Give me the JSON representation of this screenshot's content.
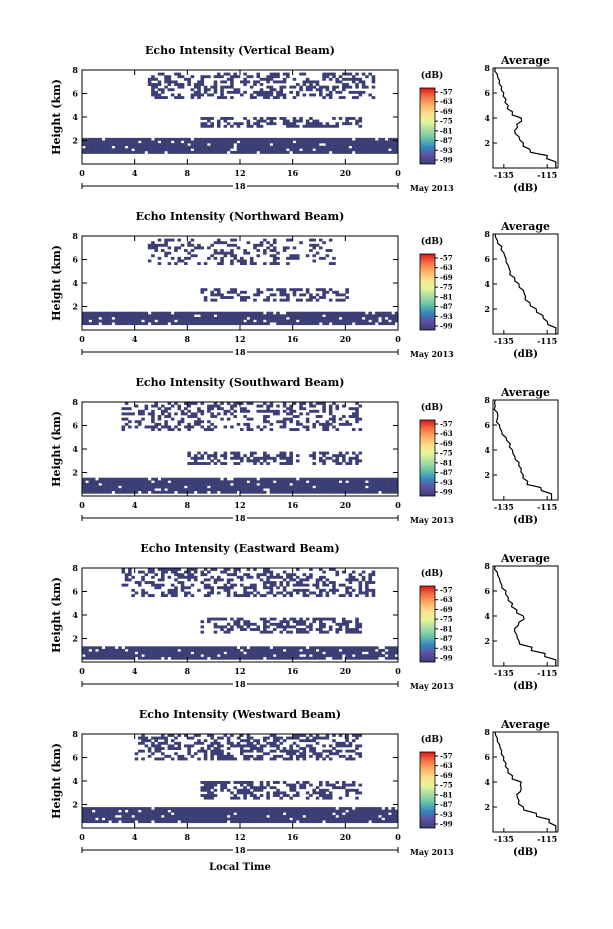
{
  "chart_data": [
    {
      "type": "heatmap",
      "title": "Echo Intensity (Vertical Beam)",
      "ylabel": "Height (km)",
      "x_ticks": [
        "0",
        "4",
        "8",
        "12",
        "16",
        "20",
        "0"
      ],
      "y_ticks": [
        "2",
        "4",
        "6",
        "8"
      ],
      "date_center": "18",
      "date_label": "May 2013",
      "colorbar": {
        "unit": "(dB)",
        "ticks": [
          "-57",
          "-63",
          "-69",
          "-75",
          "-81",
          "-87",
          "-93",
          "-99"
        ]
      },
      "layers": [
        {
          "name": "lower",
          "y_range": [
            0.9,
            2.2
          ],
          "density": 0.92
        },
        {
          "name": "middle",
          "x_range": [
            9,
            21
          ],
          "y_range": [
            3.2,
            4.0
          ],
          "density": 0.55
        },
        {
          "name": "upper",
          "x_range": [
            5,
            22
          ],
          "y_range": [
            5.5,
            7.8
          ],
          "density": 0.45
        }
      ],
      "average_profile": {
        "title": "Average",
        "xlabel": "(dB)",
        "x_ticks": [
          "-135",
          "-115"
        ],
        "y_ticks": [
          "2",
          "4",
          "6",
          "8"
        ],
        "xlim": [
          -140,
          -110
        ],
        "ylim": [
          0,
          8
        ],
        "heights": [
          0.5,
          1.0,
          1.5,
          2.0,
          2.5,
          3.0,
          3.5,
          4.0,
          4.5,
          5.0,
          5.5,
          6.0,
          6.5,
          7.0,
          7.5,
          8.0
        ],
        "values": [
          -111,
          -115,
          -123,
          -126,
          -128,
          -130,
          -129,
          -127,
          -131,
          -133,
          -134,
          -135,
          -136,
          -137,
          -138,
          -139
        ]
      }
    },
    {
      "type": "heatmap",
      "title": "Echo Intensity (Northward Beam)",
      "ylabel": "Height (km)",
      "x_ticks": [
        "0",
        "4",
        "8",
        "12",
        "16",
        "20",
        "0"
      ],
      "y_ticks": [
        "2",
        "4",
        "6",
        "8"
      ],
      "date_center": "18",
      "date_label": "May 2013",
      "colorbar": {
        "unit": "(dB)",
        "ticks": [
          "-57",
          "-63",
          "-69",
          "-75",
          "-81",
          "-87",
          "-93",
          "-99"
        ]
      },
      "layers": [
        {
          "name": "lower",
          "y_range": [
            0.4,
            1.6
          ],
          "density": 0.92
        },
        {
          "name": "middle",
          "x_range": [
            9,
            20
          ],
          "y_range": [
            2.4,
            3.6
          ],
          "density": 0.5
        },
        {
          "name": "upper",
          "x_range": [
            5,
            19
          ],
          "y_range": [
            5.5,
            7.8
          ],
          "density": 0.3
        }
      ],
      "average_profile": {
        "title": "Average",
        "xlabel": "(dB)",
        "x_ticks": [
          "-135",
          "-115"
        ],
        "y_ticks": [
          "2",
          "4",
          "6",
          "8"
        ],
        "xlim": [
          -140,
          -110
        ],
        "ylim": [
          0,
          8
        ],
        "heights": [
          0.5,
          1.0,
          1.5,
          2.0,
          2.5,
          3.0,
          3.5,
          4.0,
          4.5,
          5.0,
          5.5,
          6.0,
          6.5,
          7.0,
          7.5,
          8.0
        ],
        "values": [
          -111,
          -115,
          -117,
          -120,
          -123,
          -125,
          -126,
          -128,
          -130,
          -132,
          -133,
          -134,
          -135,
          -136,
          -138,
          -139
        ]
      }
    },
    {
      "type": "heatmap",
      "title": "Echo Intensity (Southward Beam)",
      "ylabel": "Height (km)",
      "x_ticks": [
        "0",
        "4",
        "8",
        "12",
        "16",
        "20",
        "0"
      ],
      "y_ticks": [
        "2",
        "4",
        "6",
        "8"
      ],
      "date_center": "18",
      "date_label": "May 2013",
      "colorbar": {
        "unit": "(dB)",
        "ticks": [
          "-57",
          "-63",
          "-69",
          "-75",
          "-81",
          "-87",
          "-93",
          "-99"
        ]
      },
      "layers": [
        {
          "name": "lower",
          "y_range": [
            0.3,
            1.6
          ],
          "density": 0.92
        },
        {
          "name": "middle",
          "x_range": [
            8,
            21
          ],
          "y_range": [
            2.6,
            3.8
          ],
          "density": 0.5
        },
        {
          "name": "upper",
          "x_range": [
            3,
            21
          ],
          "y_range": [
            5.6,
            7.9
          ],
          "density": 0.35
        }
      ],
      "average_profile": {
        "title": "Average",
        "xlabel": "(dB)",
        "x_ticks": [
          "-135",
          "-115"
        ],
        "y_ticks": [
          "2",
          "4",
          "6",
          "8"
        ],
        "xlim": [
          -140,
          -110
        ],
        "ylim": [
          0,
          8
        ],
        "heights": [
          0.5,
          1.0,
          1.5,
          2.0,
          2.5,
          3.0,
          3.5,
          4.0,
          4.5,
          5.0,
          5.5,
          6.0,
          6.5,
          7.0,
          7.5,
          8.0
        ],
        "values": [
          -113,
          -118,
          -124,
          -126,
          -127,
          -128,
          -130,
          -131,
          -132,
          -134,
          -136,
          -137,
          -138,
          -138,
          -139,
          -139
        ]
      }
    },
    {
      "type": "heatmap",
      "title": "Echo Intensity (Eastward Beam)",
      "ylabel": "Height (km)",
      "x_ticks": [
        "0",
        "4",
        "8",
        "12",
        "16",
        "20",
        "0"
      ],
      "y_ticks": [
        "2",
        "4",
        "6",
        "8"
      ],
      "date_center": "18",
      "date_label": "May 2013",
      "colorbar": {
        "unit": "(dB)",
        "ticks": [
          "-57",
          "-63",
          "-69",
          "-75",
          "-81",
          "-87",
          "-93",
          "-99"
        ]
      },
      "layers": [
        {
          "name": "lower",
          "y_range": [
            0.3,
            1.4
          ],
          "density": 0.92
        },
        {
          "name": "middle",
          "x_range": [
            9,
            21
          ],
          "y_range": [
            2.5,
            3.8
          ],
          "density": 0.5
        },
        {
          "name": "upper",
          "x_range": [
            3,
            22
          ],
          "y_range": [
            5.6,
            7.9
          ],
          "density": 0.4
        }
      ],
      "average_profile": {
        "title": "Average",
        "xlabel": "(dB)",
        "x_ticks": [
          "-135",
          "-115"
        ],
        "y_ticks": [
          "2",
          "4",
          "6",
          "8"
        ],
        "xlim": [
          -140,
          -110
        ],
        "ylim": [
          0,
          8
        ],
        "heights": [
          0.5,
          1.0,
          1.5,
          2.0,
          2.5,
          3.0,
          3.5,
          4.0,
          4.5,
          5.0,
          5.5,
          6.0,
          6.5,
          7.0,
          7.5,
          8.0
        ],
        "values": [
          -111,
          -116,
          -122,
          -128,
          -129,
          -130,
          -128,
          -126,
          -129,
          -131,
          -133,
          -134,
          -136,
          -137,
          -138,
          -139
        ]
      }
    },
    {
      "type": "heatmap",
      "title": "Echo Intensity (Westward Beam)",
      "ylabel": "Height (km)",
      "x_ticks": [
        "0",
        "4",
        "8",
        "12",
        "16",
        "20",
        "0"
      ],
      "y_ticks": [
        "2",
        "4",
        "6",
        "8"
      ],
      "date_center": "18",
      "date_label": "May 2013",
      "xlabel": "Local Time",
      "colorbar": {
        "unit": "(dB)",
        "ticks": [
          "-57",
          "-63",
          "-69",
          "-75",
          "-81",
          "-87",
          "-93",
          "-99"
        ]
      },
      "layers": [
        {
          "name": "lower",
          "y_range": [
            0.4,
            1.7
          ],
          "density": 0.92
        },
        {
          "name": "middle",
          "x_range": [
            9,
            21
          ],
          "y_range": [
            2.4,
            4.0
          ],
          "density": 0.5
        },
        {
          "name": "upper",
          "x_range": [
            4,
            21
          ],
          "y_range": [
            5.8,
            7.9
          ],
          "density": 0.45
        }
      ],
      "average_profile": {
        "title": "Average",
        "xlabel": "(dB)",
        "x_ticks": [
          "-135",
          "-115"
        ],
        "y_ticks": [
          "2",
          "4",
          "6",
          "8"
        ],
        "xlim": [
          -140,
          -110
        ],
        "ylim": [
          0,
          8
        ],
        "heights": [
          0.5,
          1.0,
          1.5,
          2.0,
          2.5,
          3.0,
          3.5,
          4.0,
          4.5,
          5.0,
          5.5,
          6.0,
          6.5,
          7.0,
          7.5,
          8.0
        ],
        "values": [
          -111,
          -114,
          -120,
          -126,
          -128,
          -129,
          -127,
          -127,
          -131,
          -133,
          -134,
          -135,
          -136,
          -137,
          -138,
          -139
        ]
      }
    }
  ],
  "colors": {
    "echo_fill": "#3b3f75",
    "colorbar_stops": [
      "#d7191c",
      "#f46d43",
      "#fdae61",
      "#fee08b",
      "#e6f598",
      "#abdda4",
      "#66c2a5",
      "#3288bd",
      "#5e4fa2",
      "#3b3f75"
    ]
  }
}
